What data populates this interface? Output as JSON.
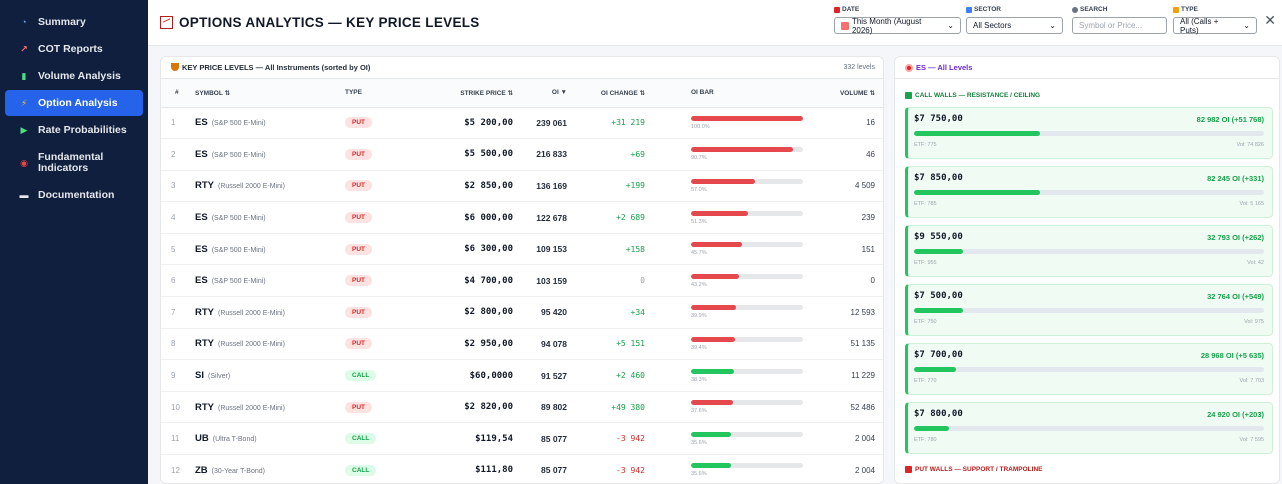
{
  "sidebar": {
    "items": [
      {
        "label": "Summary",
        "icon": "pie-chart-icon",
        "icon_color": "#60a5fa",
        "active": false
      },
      {
        "label": "COT Reports",
        "icon": "chart-up-icon",
        "icon_color": "#f87171",
        "active": false
      },
      {
        "label": "Volume Analysis",
        "icon": "bar-chart-icon",
        "icon_color": "#4ade80",
        "active": false
      },
      {
        "label": "Option Analysis",
        "icon": "lightning-icon",
        "icon_color": "#facc15",
        "active": true
      },
      {
        "label": "Rate Probabilities",
        "icon": "percent-icon",
        "icon_color": "#4ade80",
        "active": false
      },
      {
        "label": "Fundamental Indicators",
        "icon": "target-icon",
        "icon_color": "#ef4444",
        "active": false
      },
      {
        "label": "Documentation",
        "icon": "book-icon",
        "icon_color": "#e5e7eb",
        "active": false
      }
    ]
  },
  "header": {
    "title": "OPTIONS ANALYTICS — KEY PRICE LEVELS",
    "filters": {
      "date": {
        "label": "DATE",
        "value": "This Month (August 2026)"
      },
      "sector": {
        "label": "SECTOR",
        "value": "All Sectors"
      },
      "search": {
        "label": "SEARCH",
        "placeholder": "Symbol or Price..."
      },
      "type": {
        "label": "TYPE",
        "value": "All (Calls + Puts)"
      }
    },
    "close_label": "✕"
  },
  "table": {
    "title": "KEY PRICE LEVELS — All Instruments (sorted by OI)",
    "count": "332 levels",
    "columns": {
      "idx": "#",
      "symbol": "SYMBOL ⇅",
      "type": "TYPE",
      "strike": "STRIKE PRICE ⇅",
      "oi": "OI ▼",
      "oi_change": "OI CHANGE ⇅",
      "oi_bar": "OI BAR",
      "volume": "VOLUME ⇅"
    },
    "rows": [
      {
        "idx": "1",
        "symbol": "ES",
        "desc": "(S&P 500 E-Mini)",
        "type": "PUT",
        "strike": "$5 200,00",
        "oi": "239 061",
        "change": "+31 219",
        "pct_label": "100.0%",
        "pct": 100.0,
        "volume": "16"
      },
      {
        "idx": "2",
        "symbol": "ES",
        "desc": "(S&P 500 E-Mini)",
        "type": "PUT",
        "strike": "$5 500,00",
        "oi": "216 833",
        "change": "+69",
        "pct_label": "90.7%",
        "pct": 90.7,
        "volume": "46"
      },
      {
        "idx": "3",
        "symbol": "RTY",
        "desc": "(Russell 2000 E-Mini)",
        "type": "PUT",
        "strike": "$2 850,00",
        "oi": "136 169",
        "change": "+199",
        "pct_label": "57.0%",
        "pct": 57.0,
        "volume": "4 509"
      },
      {
        "idx": "4",
        "symbol": "ES",
        "desc": "(S&P 500 E-Mini)",
        "type": "PUT",
        "strike": "$6 000,00",
        "oi": "122 678",
        "change": "+2 689",
        "pct_label": "51.3%",
        "pct": 51.3,
        "volume": "239"
      },
      {
        "idx": "5",
        "symbol": "ES",
        "desc": "(S&P 500 E-Mini)",
        "type": "PUT",
        "strike": "$6 300,00",
        "oi": "109 153",
        "change": "+158",
        "pct_label": "45.7%",
        "pct": 45.7,
        "volume": "151"
      },
      {
        "idx": "6",
        "symbol": "ES",
        "desc": "(S&P 500 E-Mini)",
        "type": "PUT",
        "strike": "$4 700,00",
        "oi": "103 159",
        "change": "0",
        "pct_label": "43.2%",
        "pct": 43.2,
        "volume": "0"
      },
      {
        "idx": "7",
        "symbol": "RTY",
        "desc": "(Russell 2000 E-Mini)",
        "type": "PUT",
        "strike": "$2 800,00",
        "oi": "95 420",
        "change": "+34",
        "pct_label": "39.9%",
        "pct": 39.9,
        "volume": "12 593"
      },
      {
        "idx": "8",
        "symbol": "RTY",
        "desc": "(Russell 2000 E-Mini)",
        "type": "PUT",
        "strike": "$2 950,00",
        "oi": "94 078",
        "change": "+5 151",
        "pct_label": "39.4%",
        "pct": 39.4,
        "volume": "51 135"
      },
      {
        "idx": "9",
        "symbol": "SI",
        "desc": "(Silver)",
        "type": "CALL",
        "strike": "$60,0000",
        "oi": "91 527",
        "change": "+2 460",
        "pct_label": "38.3%",
        "pct": 38.3,
        "volume": "11 229"
      },
      {
        "idx": "10",
        "symbol": "RTY",
        "desc": "(Russell 2000 E-Mini)",
        "type": "PUT",
        "strike": "$2 820,00",
        "oi": "89 802",
        "change": "+49 380",
        "pct_label": "37.6%",
        "pct": 37.6,
        "volume": "52 486"
      },
      {
        "idx": "11",
        "symbol": "UB",
        "desc": "(Ultra T-Bond)",
        "type": "CALL",
        "strike": "$119,54",
        "oi": "85 077",
        "change": "-3 942",
        "pct_label": "35.6%",
        "pct": 35.6,
        "volume": "2 004"
      },
      {
        "idx": "12",
        "symbol": "ZB",
        "desc": "(30-Year T-Bond)",
        "type": "CALL",
        "strike": "$111,80",
        "oi": "85 077",
        "change": "-3 942",
        "pct_label": "35.6%",
        "pct": 35.6,
        "volume": "2 004"
      }
    ]
  },
  "panel": {
    "title": "ES — All Levels",
    "call_section": "CALL WALLS — RESISTANCE / CEILING",
    "put_section": "PUT WALLS — SUPPORT / TRAMPOLINE",
    "walls": [
      {
        "strike": "$7 750,00",
        "oi": "82 982 OI (+51 768)",
        "etf": "ETF: 775",
        "vol": "Vol: 74 826",
        "fill": 0.36
      },
      {
        "strike": "$7 850,00",
        "oi": "82 245 OI (+331)",
        "etf": "ETF: 785",
        "vol": "Vol: 5 165",
        "fill": 0.36
      },
      {
        "strike": "$9 550,00",
        "oi": "32 793 OI (+262)",
        "etf": "ETF: 955",
        "vol": "Vol: 42",
        "fill": 0.14
      },
      {
        "strike": "$7 500,00",
        "oi": "32 764 OI (+549)",
        "etf": "ETF: 750",
        "vol": "Vol: 975",
        "fill": 0.14
      },
      {
        "strike": "$7 700,00",
        "oi": "28 968 OI (+5 635)",
        "etf": "ETF: 770",
        "vol": "Vol: 7 703",
        "fill": 0.12
      },
      {
        "strike": "$7 800,00",
        "oi": "24 920 OI (+203)",
        "etf": "ETF: 780",
        "vol": "Vol: 7 595",
        "fill": 0.1
      }
    ]
  },
  "colors": {
    "put": "#e5484d",
    "call": "#22c55e",
    "accent": "#2563eb",
    "sidebar": "#0f1f3d"
  }
}
